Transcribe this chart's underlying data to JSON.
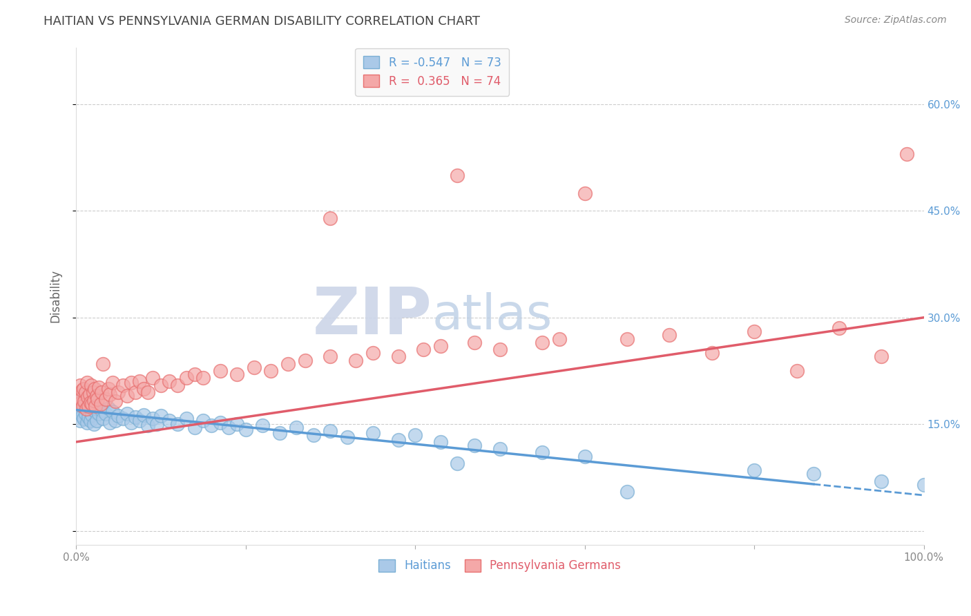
{
  "title": "HAITIAN VS PENNSYLVANIA GERMAN DISABILITY CORRELATION CHART",
  "source": "Source: ZipAtlas.com",
  "ylabel": "Disability",
  "xlim": [
    0,
    100
  ],
  "ylim": [
    -2,
    68
  ],
  "xticks": [
    0,
    20,
    40,
    60,
    80,
    100
  ],
  "xticklabels": [
    "0.0%",
    "",
    "",
    "",
    "",
    "100.0%"
  ],
  "yticks": [
    0,
    15,
    30,
    45,
    60
  ],
  "yticklabels": [
    "",
    "",
    "",
    "",
    ""
  ],
  "right_yticks": [
    15,
    30,
    45,
    60
  ],
  "right_yticklabels": [
    "15.0%",
    "30.0%",
    "45.0%",
    "60.0%"
  ],
  "haitian_color": "#aac9e8",
  "pa_german_color": "#f4a8a8",
  "haitian_edge_color": "#7aafd4",
  "pa_german_edge_color": "#e87070",
  "haitian_line_color": "#5b9bd5",
  "pa_german_line_color": "#e05c6a",
  "legend_haitian": "R = -0.547   N = 73",
  "legend_pa_german": "R =  0.365   N = 74",
  "watermark": "ZIPAtlas",
  "haitian_intercept": 17.0,
  "haitian_slope": -0.12,
  "pa_german_intercept": 12.5,
  "pa_german_slope": 0.175,
  "haitian_points": [
    [
      0.2,
      17.5
    ],
    [
      0.3,
      16.8
    ],
    [
      0.4,
      18.2
    ],
    [
      0.5,
      15.5
    ],
    [
      0.6,
      17.0
    ],
    [
      0.7,
      16.2
    ],
    [
      0.8,
      18.5
    ],
    [
      0.9,
      15.8
    ],
    [
      1.0,
      17.3
    ],
    [
      1.1,
      16.5
    ],
    [
      1.2,
      18.0
    ],
    [
      1.3,
      15.2
    ],
    [
      1.4,
      17.8
    ],
    [
      1.5,
      16.0
    ],
    [
      1.6,
      18.3
    ],
    [
      1.7,
      15.5
    ],
    [
      1.8,
      17.5
    ],
    [
      1.9,
      16.3
    ],
    [
      2.0,
      18.8
    ],
    [
      2.1,
      15.0
    ],
    [
      2.2,
      17.0
    ],
    [
      2.3,
      16.8
    ],
    [
      2.4,
      15.5
    ],
    [
      2.5,
      17.2
    ],
    [
      2.7,
      16.5
    ],
    [
      3.0,
      17.0
    ],
    [
      3.2,
      15.8
    ],
    [
      3.5,
      16.5
    ],
    [
      3.8,
      17.3
    ],
    [
      4.0,
      15.2
    ],
    [
      4.3,
      16.8
    ],
    [
      4.6,
      15.5
    ],
    [
      5.0,
      16.2
    ],
    [
      5.5,
      15.8
    ],
    [
      6.0,
      16.5
    ],
    [
      6.5,
      15.2
    ],
    [
      7.0,
      16.0
    ],
    [
      7.5,
      15.5
    ],
    [
      8.0,
      16.3
    ],
    [
      8.5,
      14.8
    ],
    [
      9.0,
      15.8
    ],
    [
      9.5,
      15.0
    ],
    [
      10.0,
      16.2
    ],
    [
      11.0,
      15.5
    ],
    [
      12.0,
      15.0
    ],
    [
      13.0,
      15.8
    ],
    [
      14.0,
      14.5
    ],
    [
      15.0,
      15.5
    ],
    [
      16.0,
      14.8
    ],
    [
      17.0,
      15.2
    ],
    [
      18.0,
      14.5
    ],
    [
      19.0,
      15.0
    ],
    [
      20.0,
      14.2
    ],
    [
      22.0,
      14.8
    ],
    [
      24.0,
      13.8
    ],
    [
      26.0,
      14.5
    ],
    [
      28.0,
      13.5
    ],
    [
      30.0,
      14.0
    ],
    [
      32.0,
      13.2
    ],
    [
      35.0,
      13.8
    ],
    [
      38.0,
      12.8
    ],
    [
      40.0,
      13.5
    ],
    [
      43.0,
      12.5
    ],
    [
      45.0,
      9.5
    ],
    [
      47.0,
      12.0
    ],
    [
      50.0,
      11.5
    ],
    [
      55.0,
      11.0
    ],
    [
      60.0,
      10.5
    ],
    [
      65.0,
      5.5
    ],
    [
      80.0,
      8.5
    ],
    [
      87.0,
      8.0
    ],
    [
      95.0,
      7.0
    ],
    [
      100.0,
      6.5
    ]
  ],
  "pa_german_points": [
    [
      0.2,
      19.0
    ],
    [
      0.3,
      17.8
    ],
    [
      0.5,
      20.5
    ],
    [
      0.6,
      18.5
    ],
    [
      0.7,
      19.8
    ],
    [
      0.8,
      17.5
    ],
    [
      0.9,
      20.0
    ],
    [
      1.0,
      18.2
    ],
    [
      1.1,
      19.5
    ],
    [
      1.2,
      17.2
    ],
    [
      1.3,
      20.8
    ],
    [
      1.4,
      18.8
    ],
    [
      1.5,
      17.5
    ],
    [
      1.6,
      19.2
    ],
    [
      1.7,
      18.0
    ],
    [
      1.8,
      20.5
    ],
    [
      1.9,
      17.8
    ],
    [
      2.0,
      19.5
    ],
    [
      2.1,
      18.3
    ],
    [
      2.2,
      20.0
    ],
    [
      2.3,
      17.5
    ],
    [
      2.4,
      19.0
    ],
    [
      2.5,
      18.5
    ],
    [
      2.7,
      20.2
    ],
    [
      2.9,
      17.8
    ],
    [
      3.0,
      19.5
    ],
    [
      3.2,
      23.5
    ],
    [
      3.5,
      18.5
    ],
    [
      3.8,
      20.0
    ],
    [
      4.0,
      19.2
    ],
    [
      4.3,
      20.8
    ],
    [
      4.6,
      18.2
    ],
    [
      5.0,
      19.5
    ],
    [
      5.5,
      20.5
    ],
    [
      6.0,
      19.0
    ],
    [
      6.5,
      20.8
    ],
    [
      7.0,
      19.5
    ],
    [
      7.5,
      21.0
    ],
    [
      8.0,
      20.0
    ],
    [
      8.5,
      19.5
    ],
    [
      9.0,
      21.5
    ],
    [
      10.0,
      20.5
    ],
    [
      11.0,
      21.0
    ],
    [
      12.0,
      20.5
    ],
    [
      13.0,
      21.5
    ],
    [
      14.0,
      22.0
    ],
    [
      15.0,
      21.5
    ],
    [
      17.0,
      22.5
    ],
    [
      19.0,
      22.0
    ],
    [
      21.0,
      23.0
    ],
    [
      23.0,
      22.5
    ],
    [
      25.0,
      23.5
    ],
    [
      27.0,
      24.0
    ],
    [
      30.0,
      24.5
    ],
    [
      33.0,
      24.0
    ],
    [
      35.0,
      25.0
    ],
    [
      38.0,
      24.5
    ],
    [
      41.0,
      25.5
    ],
    [
      43.0,
      26.0
    ],
    [
      47.0,
      26.5
    ],
    [
      50.0,
      25.5
    ],
    [
      55.0,
      26.5
    ],
    [
      60.0,
      47.5
    ],
    [
      65.0,
      27.0
    ],
    [
      70.0,
      27.5
    ],
    [
      75.0,
      25.0
    ],
    [
      80.0,
      28.0
    ],
    [
      85.0,
      22.5
    ],
    [
      90.0,
      28.5
    ],
    [
      95.0,
      24.5
    ],
    [
      98.0,
      53.0
    ],
    [
      45.0,
      50.0
    ],
    [
      30.0,
      44.0
    ],
    [
      57.0,
      27.0
    ]
  ],
  "background_color": "#ffffff",
  "grid_color": "#cccccc",
  "title_color": "#444444",
  "axis_label_color": "#666666",
  "tick_color": "#888888",
  "source_color": "#888888",
  "watermark_color": "#ccd5e8",
  "legend_box_color": "#f8f8f8",
  "legend_border_color": "#cccccc"
}
